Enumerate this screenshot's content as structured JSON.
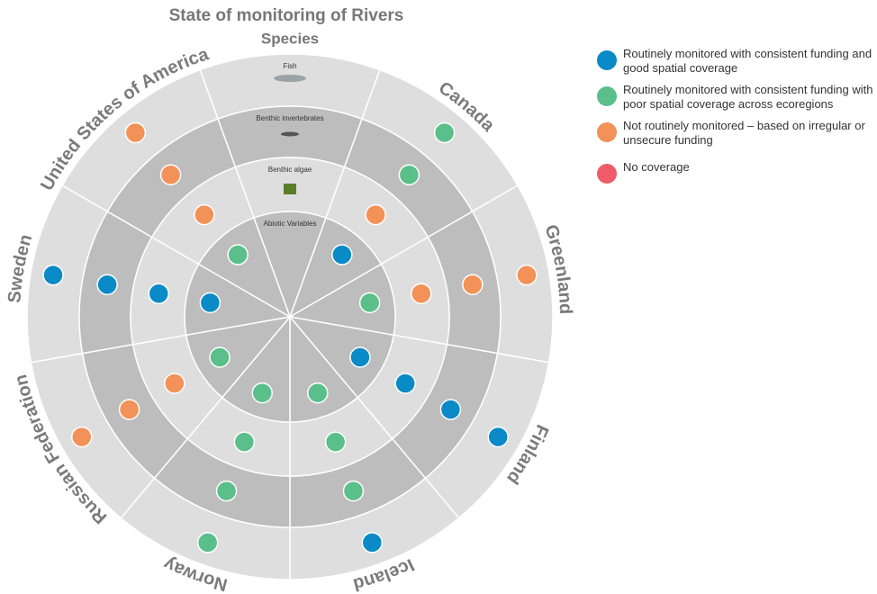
{
  "title": "State of monitoring of Rivers",
  "species_label": "Species",
  "rings": [
    "Fish",
    "Benthic invertebrates",
    "Benthic algae",
    "Abiotic Variables"
  ],
  "legend": [
    {
      "label": "Routinely monitored with consistent funding and good spatial coverage",
      "color": "#0a8ac6"
    },
    {
      "label": "Routinely monitored with consistent funding with poor spatial coverage across ecoregions",
      "color": "#5bbf8a"
    },
    {
      "label": "Not routinely monitored – based on irregular or unsecure funding",
      "color": "#f29158"
    },
    {
      "label": "No coverage",
      "color": "#ef5b6a"
    }
  ],
  "countries": [
    {
      "name": "Canada",
      "status": [
        1,
        1,
        2,
        0
      ]
    },
    {
      "name": "Greenland",
      "status": [
        2,
        2,
        2,
        1
      ]
    },
    {
      "name": "Finland",
      "status": [
        0,
        0,
        0,
        0
      ]
    },
    {
      "name": "Iceland",
      "status": [
        0,
        1,
        1,
        1
      ]
    },
    {
      "name": "Norway",
      "status": [
        1,
        1,
        1,
        1
      ]
    },
    {
      "name": "Russian Federation",
      "status": [
        2,
        2,
        2,
        1
      ]
    },
    {
      "name": "Sweden",
      "status": [
        0,
        0,
        0,
        0
      ]
    },
    {
      "name": "United States of America",
      "status": [
        2,
        2,
        2,
        1
      ]
    }
  ]
}
